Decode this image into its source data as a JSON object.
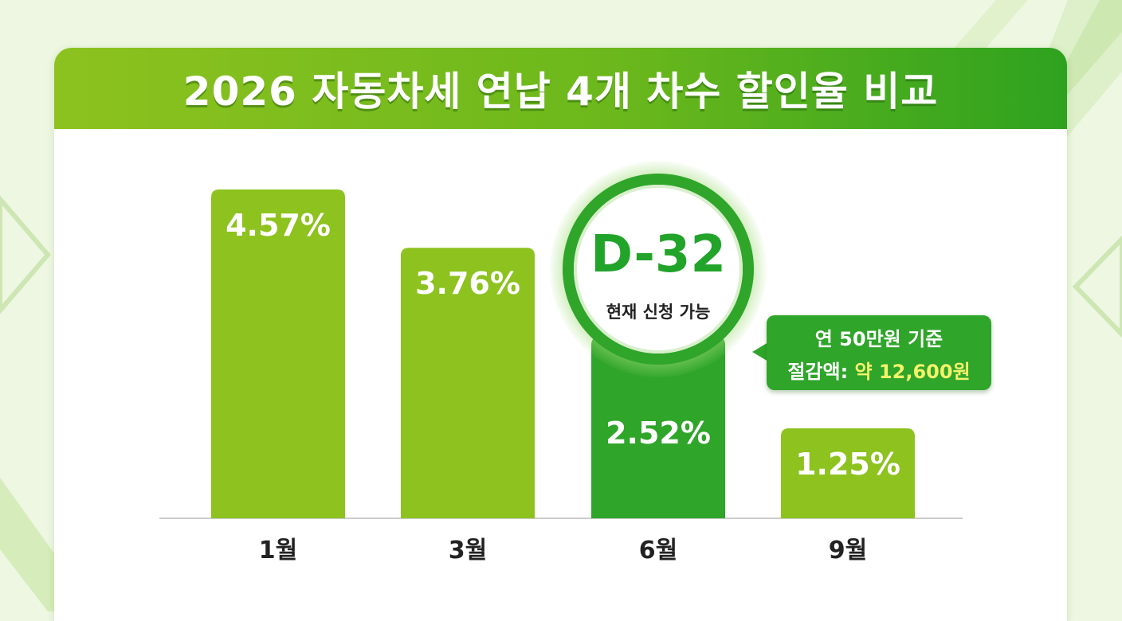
{
  "title": "2026 자동차세 연납 4개 차수 할인율 비교",
  "chart_data": {
    "type": "bar",
    "title": "2026 자동차세 연납 4개 차수 할인율 비교",
    "categories": [
      "1월",
      "3월",
      "6월",
      "9월"
    ],
    "values": [
      4.57,
      3.76,
      2.52,
      1.25
    ],
    "value_labels": [
      "4.57%",
      "3.76%",
      "2.52%",
      "1.25%"
    ],
    "unit": "%",
    "ylim": [
      0,
      5
    ],
    "grid": false,
    "highlight_index": 2,
    "colors": {
      "bar": "#8dc21f",
      "bar_highlight": "#2fa52a",
      "header": "#6cb81c",
      "accent_text": "#f3f36a"
    }
  },
  "badge": {
    "count": "D-32",
    "status": "현재 신청 가능"
  },
  "callout": {
    "line1": "연 50만원 기준",
    "line2_label": "절감액:",
    "line2_amount": "약 12,600원"
  }
}
